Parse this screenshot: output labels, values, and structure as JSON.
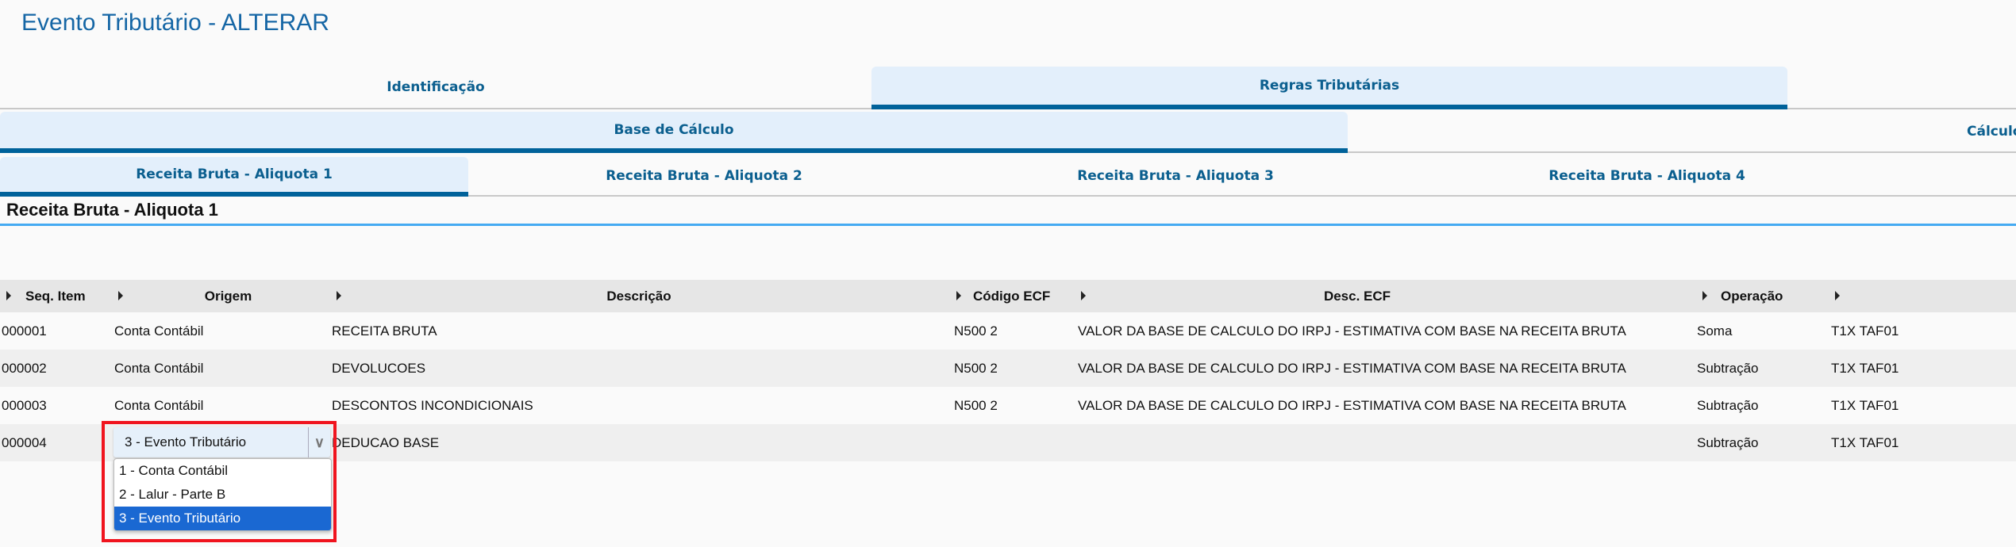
{
  "title": "Evento Tributário - ALTERAR",
  "tabs_level1": [
    {
      "label": "Identificação",
      "active": false
    },
    {
      "label": "Regras Tributárias",
      "active": true
    }
  ],
  "tabs_level2": [
    {
      "label": "Base de Cálculo",
      "active": true
    },
    {
      "label": "Cálculo",
      "active": false
    }
  ],
  "tabs_level3": [
    {
      "label": "Receita Bruta - Aliquota 1",
      "active": true
    },
    {
      "label": "Receita Bruta - Aliquota 2",
      "active": false
    },
    {
      "label": "Receita Bruta - Aliquota 3",
      "active": false
    },
    {
      "label": "Receita Bruta - Aliquota 4",
      "active": false
    }
  ],
  "section_title": "Receita Bruta - Aliquota 1",
  "table": {
    "columns": [
      "Seq. Item",
      "Origem",
      "Descrição",
      "Código ECF",
      "Desc. ECF",
      "Operação",
      ""
    ],
    "rows": [
      [
        "000001",
        "Conta Contábil",
        "RECEITA BRUTA",
        "N500 2",
        "VALOR DA BASE DE CALCULO DO IRPJ - ESTIMATIVA COM BASE NA RECEITA BRUTA",
        "Soma",
        "T1X TAF01"
      ],
      [
        "000002",
        "Conta Contábil",
        "DEVOLUCOES",
        "N500 2",
        "VALOR DA BASE DE CALCULO DO IRPJ - ESTIMATIVA COM BASE NA RECEITA BRUTA",
        "Subtração",
        "T1X TAF01"
      ],
      [
        "000003",
        "Conta Contábil",
        "DESCONTOS INCONDICIONAIS",
        "N500 2",
        "VALOR DA BASE DE CALCULO DO IRPJ - ESTIMATIVA COM BASE NA RECEITA BRUTA",
        "Subtração",
        "T1X TAF01"
      ],
      [
        "000004",
        "",
        "DEDUCAO BASE",
        "",
        "",
        "Subtração",
        "T1X TAF01"
      ]
    ]
  },
  "origem_select": {
    "value": "3 - Evento Tributário",
    "options": [
      "1 - Conta Contábil",
      "2 - Lalur - Parte B",
      "3 - Evento Tributário"
    ],
    "selected_index": 2
  },
  "colors": {
    "accent": "#00629a",
    "active_tab_bg": "#e3effb",
    "highlight": "#f0141e",
    "selected_option": "#1a68d2"
  }
}
